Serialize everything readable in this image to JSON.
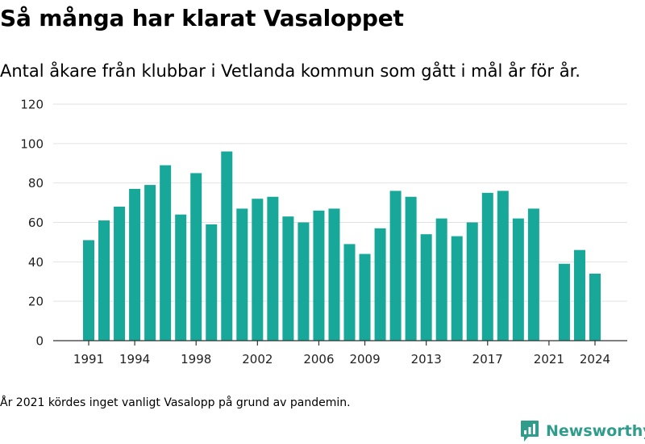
{
  "title": "Så många har klarat Vasaloppet",
  "subtitle": "Antal åkare från klubbar i Vetlanda kommun som gått i mål år för år.",
  "footnote": "År 2021 kördes inget vanligt Vasalopp på grund av pandemin.",
  "brand": {
    "name": "Newsworthy",
    "color": "#2f9c8c"
  },
  "chart_data": {
    "type": "bar",
    "title": "Så många har klarat Vasaloppet",
    "subtitle": "Antal åkare från klubbar i Vetlanda kommun som gått i mål år för år.",
    "xlabel": "",
    "ylabel": "",
    "color": "#17a89a",
    "grid": true,
    "legend": "none",
    "ylim": [
      0,
      120
    ],
    "yticks": [
      0,
      20,
      40,
      60,
      80,
      100,
      120
    ],
    "xticks": [
      1991,
      1994,
      1998,
      2002,
      2006,
      2009,
      2013,
      2017,
      2021,
      2024
    ],
    "categories": [
      1991,
      1992,
      1993,
      1994,
      1995,
      1996,
      1997,
      1998,
      1999,
      2000,
      2001,
      2002,
      2003,
      2004,
      2005,
      2006,
      2007,
      2008,
      2009,
      2010,
      2011,
      2012,
      2013,
      2014,
      2015,
      2016,
      2017,
      2018,
      2019,
      2020,
      2021,
      2022,
      2023,
      2024
    ],
    "values": [
      51,
      61,
      68,
      77,
      79,
      89,
      64,
      85,
      59,
      96,
      67,
      72,
      73,
      63,
      60,
      66,
      67,
      49,
      44,
      57,
      76,
      73,
      54,
      62,
      53,
      60,
      75,
      76,
      62,
      67,
      null,
      39,
      46,
      34
    ]
  }
}
